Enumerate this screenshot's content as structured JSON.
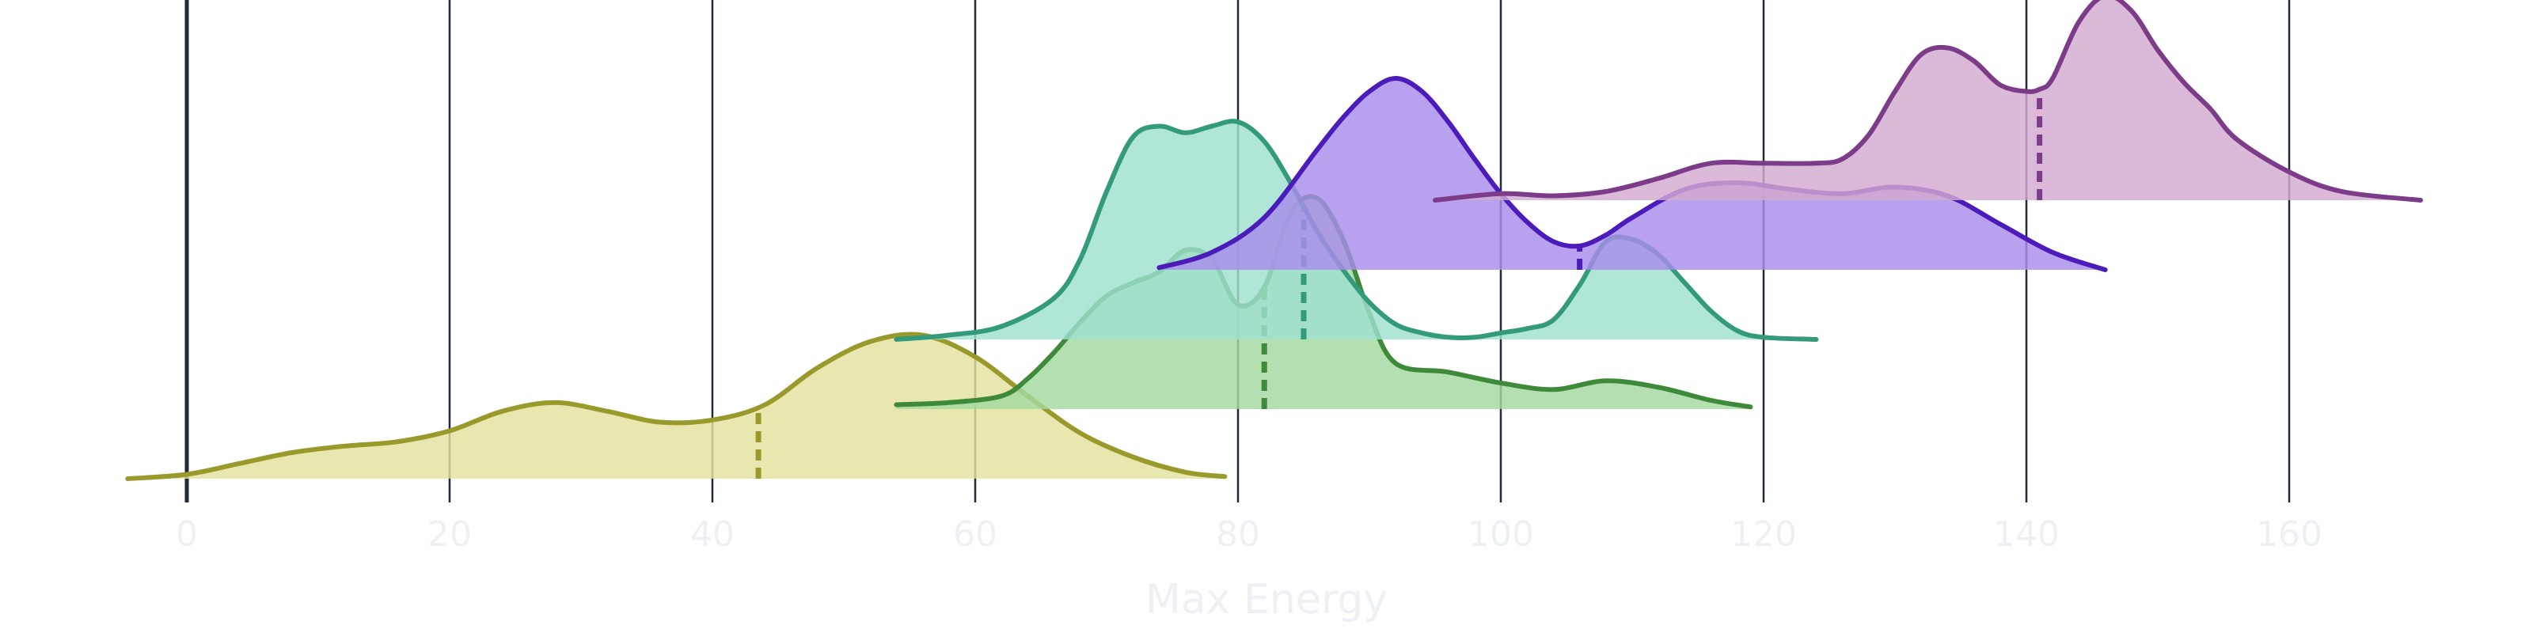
{
  "chart_data": {
    "type": "ridgeline",
    "xlabel": "Max Energy",
    "xlim": [
      -5,
      170
    ],
    "x_ticks": [
      0,
      20,
      40,
      60,
      80,
      100,
      120,
      140,
      160
    ],
    "grid": "vertical",
    "series": [
      {
        "baseline_rank": 0,
        "color": "#9a9a2c",
        "fill": "#e2e29e",
        "median": 43.5,
        "x": [
          -4.5,
          0,
          4,
          8,
          12,
          16,
          20,
          24,
          28,
          32,
          36,
          40,
          44,
          48,
          52,
          56,
          60,
          64,
          68,
          72,
          76,
          79
        ],
        "y": [
          0.0,
          0.02,
          0.07,
          0.12,
          0.15,
          0.17,
          0.22,
          0.31,
          0.35,
          0.31,
          0.26,
          0.27,
          0.34,
          0.51,
          0.63,
          0.66,
          0.56,
          0.38,
          0.21,
          0.1,
          0.03,
          0.01
        ]
      },
      {
        "baseline_rank": 1,
        "color": "#3e8a3a",
        "fill": "#a4d8a0",
        "median": 82,
        "x": [
          54,
          58,
          62,
          64,
          66,
          68,
          70,
          72,
          74,
          76,
          78,
          80,
          82,
          84,
          86,
          88,
          90,
          92,
          96,
          100,
          104,
          108,
          112,
          116,
          119
        ],
        "y": [
          0.02,
          0.03,
          0.06,
          0.14,
          0.26,
          0.4,
          0.52,
          0.58,
          0.63,
          0.73,
          0.69,
          0.48,
          0.56,
          0.9,
          0.97,
          0.78,
          0.44,
          0.21,
          0.17,
          0.12,
          0.09,
          0.13,
          0.1,
          0.04,
          0.01
        ]
      },
      {
        "baseline_rank": 2,
        "color": "#339a7c",
        "fill": "#9de0ce",
        "median": 85,
        "x": [
          54,
          58,
          62,
          66,
          68,
          70,
          72,
          74,
          76,
          78,
          80,
          82,
          84,
          86,
          88,
          90,
          92,
          94,
          96,
          98,
          100,
          102,
          104,
          106,
          108,
          110,
          112,
          114,
          116,
          118,
          120,
          124
        ],
        "y": [
          0.0,
          0.02,
          0.06,
          0.19,
          0.37,
          0.68,
          0.93,
          0.98,
          0.95,
          0.98,
          1.0,
          0.91,
          0.72,
          0.5,
          0.32,
          0.17,
          0.07,
          0.03,
          0.01,
          0.01,
          0.03,
          0.05,
          0.09,
          0.25,
          0.45,
          0.46,
          0.39,
          0.26,
          0.13,
          0.04,
          0.01,
          0.0
        ]
      },
      {
        "baseline_rank": 3,
        "color": "#4b1cba",
        "fill": "#a88cec",
        "median": 106,
        "x": [
          74,
          78,
          82,
          86,
          88,
          90,
          92,
          94,
          96,
          98,
          100,
          102,
          104,
          106,
          108,
          110,
          114,
          118,
          122,
          126,
          130,
          134,
          138,
          142,
          146
        ],
        "y": [
          0.01,
          0.08,
          0.24,
          0.55,
          0.7,
          0.82,
          0.88,
          0.82,
          0.68,
          0.51,
          0.35,
          0.22,
          0.13,
          0.11,
          0.16,
          0.24,
          0.37,
          0.4,
          0.37,
          0.35,
          0.38,
          0.34,
          0.21,
          0.08,
          0.0
        ]
      },
      {
        "baseline_rank": 4,
        "color": "#7c3c8a",
        "fill": "#d3a9d0",
        "median": 141,
        "x": [
          95,
          100,
          104,
          108,
          112,
          116,
          120,
          124,
          126,
          128,
          130,
          132,
          134,
          136,
          138,
          140,
          141,
          142,
          144,
          146,
          148,
          150,
          152,
          154,
          156,
          160,
          164,
          170
        ],
        "y": [
          0.0,
          0.03,
          0.02,
          0.04,
          0.1,
          0.17,
          0.17,
          0.17,
          0.19,
          0.3,
          0.5,
          0.67,
          0.7,
          0.64,
          0.53,
          0.5,
          0.51,
          0.56,
          0.82,
          0.94,
          0.87,
          0.69,
          0.54,
          0.42,
          0.28,
          0.13,
          0.04,
          0.0
        ]
      }
    ]
  }
}
